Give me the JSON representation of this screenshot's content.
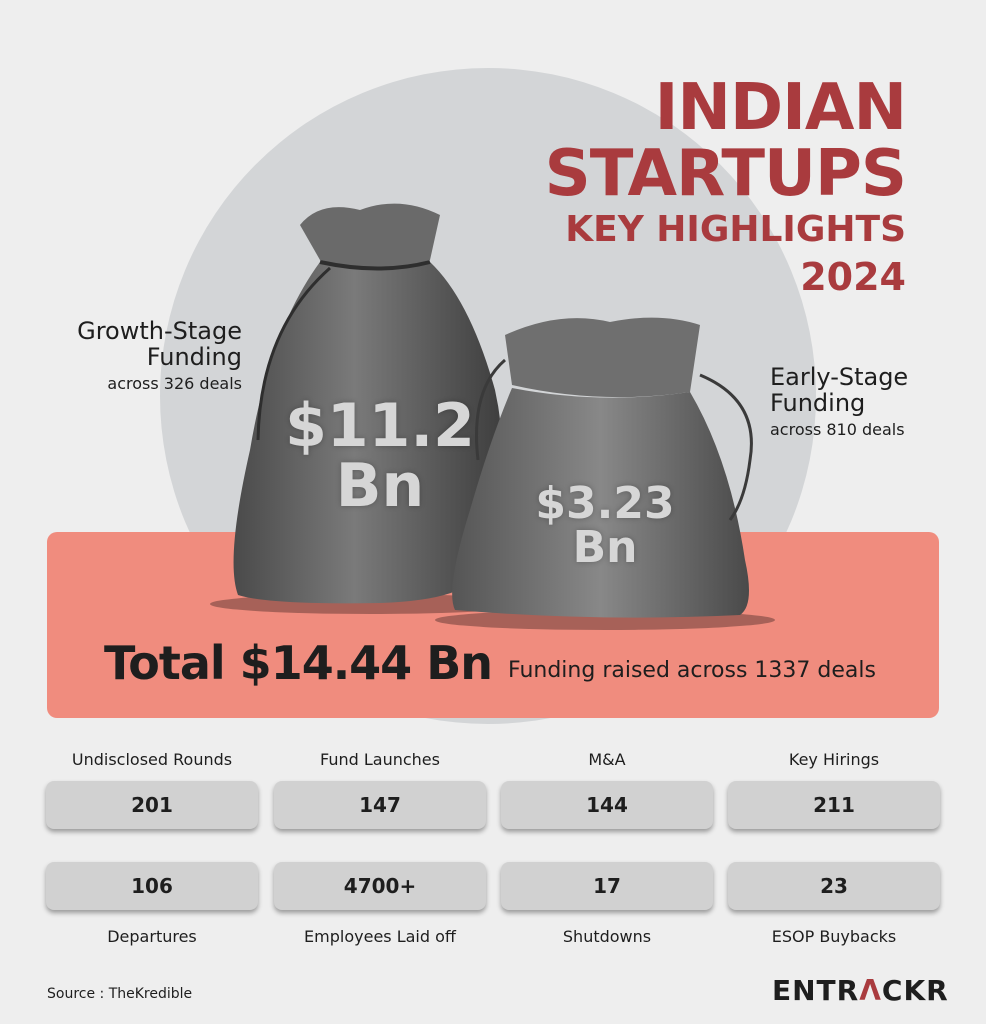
{
  "title": {
    "line1": "INDIAN",
    "line2": "STARTUPS",
    "line3": "KEY HIGHLIGHTS",
    "line4": "2024"
  },
  "growth": {
    "title_line1": "Growth-Stage",
    "title_line2": "Funding",
    "sub": "across 326 deals",
    "amount_line1": "$11.2",
    "amount_line2": "Bn"
  },
  "early": {
    "title_line1": "Early-Stage",
    "title_line2": "Funding",
    "sub": "across 810 deals",
    "amount_line1": "$3.23",
    "amount_line2": "Bn"
  },
  "total": {
    "value": "Total $14.44 Bn",
    "sub": "Funding raised across 1337 deals"
  },
  "stats_top": [
    {
      "label": "Undisclosed Rounds",
      "value": "201"
    },
    {
      "label": "Fund Launches",
      "value": "147"
    },
    {
      "label": "M&A",
      "value": "144"
    },
    {
      "label": "Key Hirings",
      "value": "211"
    }
  ],
  "stats_bottom": [
    {
      "label": "Departures",
      "value": "106"
    },
    {
      "label": "Employees Laid off",
      "value": "4700+"
    },
    {
      "label": "Shutdowns",
      "value": "17"
    },
    {
      "label": "ESOP Buybacks",
      "value": "23"
    }
  ],
  "footer": {
    "source": "Source : TheKredible",
    "logo_a": "ENTR",
    "logo_b": "Λ",
    "logo_c": "CKR"
  },
  "colors": {
    "title": "#a93b3e",
    "banner": "#f08c7e",
    "circle": "#d3d5d7",
    "background": "#eeeeee"
  }
}
